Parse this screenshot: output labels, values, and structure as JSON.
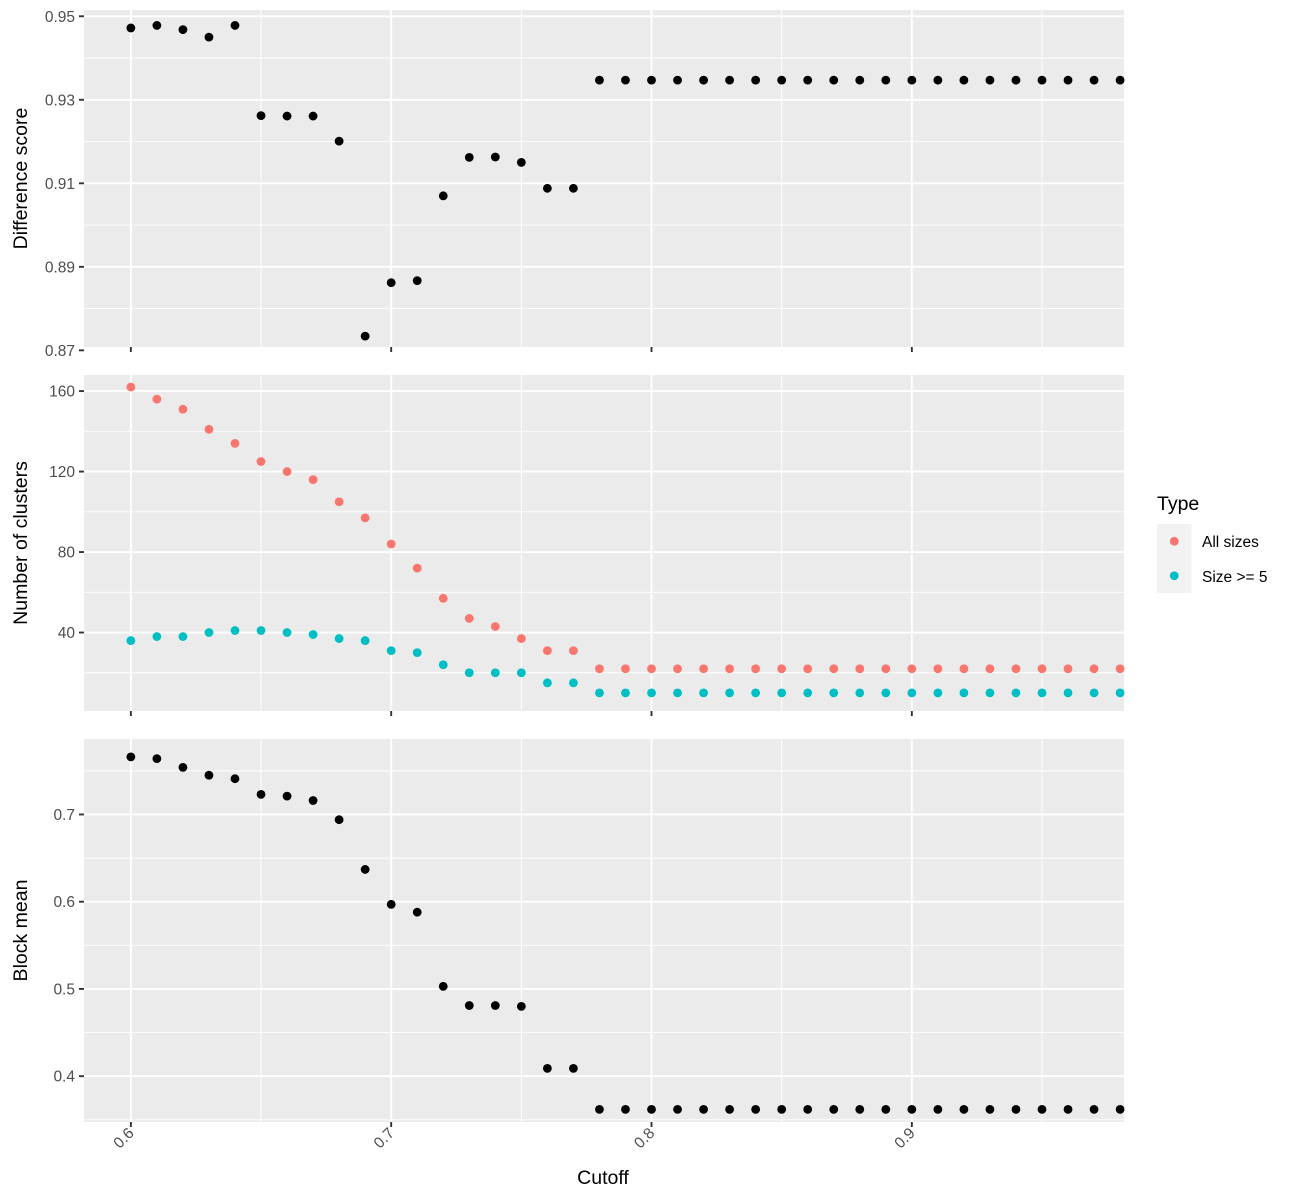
{
  "chart_data": {
    "type": "scatter",
    "xlabel": "Cutoff",
    "xlim": [
      0.582,
      0.9815
    ],
    "x_ticks": [
      0.6,
      0.7,
      0.8,
      0.9
    ],
    "x_tick_labels": [
      "0.6",
      "0.7",
      "0.8",
      "0.9"
    ],
    "x": [
      0.6,
      0.61,
      0.62,
      0.63,
      0.64,
      0.65,
      0.66,
      0.67,
      0.68,
      0.69,
      0.7,
      0.71,
      0.72,
      0.73,
      0.74,
      0.75,
      0.76,
      0.77,
      0.78,
      0.79,
      0.8,
      0.81,
      0.82,
      0.83,
      0.84,
      0.85,
      0.86,
      0.87,
      0.88,
      0.89,
      0.9,
      0.91,
      0.92,
      0.93,
      0.94,
      0.95,
      0.96,
      0.97,
      0.98
    ],
    "grid": true,
    "panels": [
      {
        "ylabel": "Difference score",
        "ylim": [
          0.8708,
          0.9515
        ],
        "y_ticks": [
          0.87,
          0.89,
          0.91,
          0.93,
          0.95
        ],
        "y_tick_labels": [
          "0.87",
          "0.89",
          "0.91",
          "0.93",
          "0.95"
        ],
        "series": [
          {
            "color": "#000000",
            "values": [
              0.9472,
              0.9478,
              0.9468,
              0.945,
              0.9478,
              0.9262,
              0.9261,
              0.9261,
              0.9201,
              0.8734,
              0.8862,
              0.8867,
              0.907,
              0.9162,
              0.9163,
              0.915,
              0.9088,
              0.9088,
              0.9347,
              0.9347,
              0.9347,
              0.9347,
              0.9347,
              0.9347,
              0.9347,
              0.9347,
              0.9347,
              0.9347,
              0.9347,
              0.9347,
              0.9347,
              0.9347,
              0.9347,
              0.9347,
              0.9347,
              0.9347,
              0.9347,
              0.9347,
              0.9347
            ]
          }
        ]
      },
      {
        "ylabel": "Number of clusters",
        "ylim": [
          1,
          168
        ],
        "y_ticks": [
          40,
          80,
          120,
          160
        ],
        "y_tick_labels": [
          "40",
          "80",
          "120",
          "160"
        ],
        "series": [
          {
            "name": "All sizes",
            "color": "#F8766D",
            "values": [
              162,
              156,
              151,
              141,
              134,
              125,
              120,
              116,
              105,
              97,
              84,
              72,
              57,
              47,
              43,
              37,
              31,
              31,
              22,
              22,
              22,
              22,
              22,
              22,
              22,
              22,
              22,
              22,
              22,
              22,
              22,
              22,
              22,
              22,
              22,
              22,
              22,
              22,
              22
            ]
          },
          {
            "name": "Size >= 5",
            "color": "#00BFC4",
            "values": [
              36,
              38,
              38,
              40,
              41,
              41,
              40,
              39,
              37,
              36,
              31,
              30,
              24,
              20,
              20,
              20,
              15,
              15,
              10,
              10,
              10,
              10,
              10,
              10,
              10,
              10,
              10,
              10,
              10,
              10,
              10,
              10,
              10,
              10,
              10,
              10,
              10,
              10,
              10
            ]
          }
        ]
      },
      {
        "ylabel": "Block mean",
        "ylim": [
          0.3475,
          0.7865
        ],
        "y_ticks": [
          0.4,
          0.5,
          0.6,
          0.7
        ],
        "y_tick_labels": [
          "0.4",
          "0.5",
          "0.6",
          "0.7"
        ],
        "series": [
          {
            "color": "#000000",
            "values": [
              0.766,
              0.764,
              0.754,
              0.745,
              0.741,
              0.723,
              0.721,
              0.716,
              0.694,
              0.637,
              0.597,
              0.588,
              0.503,
              0.481,
              0.481,
              0.48,
              0.409,
              0.409,
              0.362,
              0.362,
              0.362,
              0.362,
              0.362,
              0.362,
              0.362,
              0.362,
              0.362,
              0.362,
              0.362,
              0.362,
              0.362,
              0.362,
              0.362,
              0.362,
              0.362,
              0.362,
              0.362,
              0.362,
              0.362
            ]
          }
        ]
      }
    ],
    "legend": {
      "title": "Type",
      "position": "right",
      "entries": [
        {
          "label": "All sizes",
          "color": "#F8766D"
        },
        {
          "label": "Size >= 5",
          "color": "#00BFC4"
        }
      ]
    }
  }
}
